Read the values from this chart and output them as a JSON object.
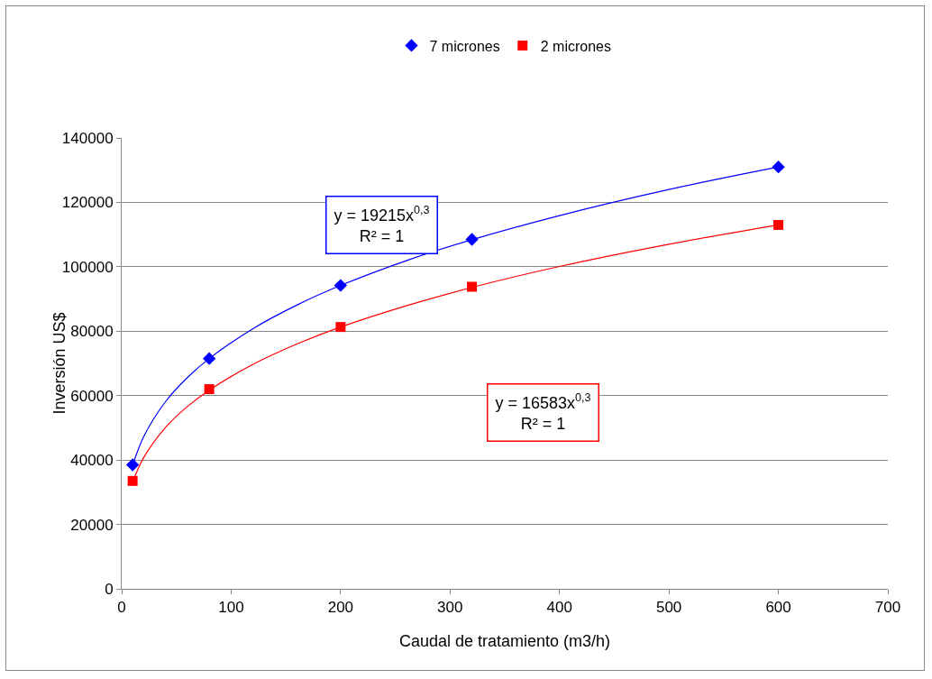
{
  "chart_data": {
    "type": "scatter",
    "xlabel": "Caudal de tratamiento (m3/h)",
    "ylabel": "Inversión US$",
    "xlim": [
      0,
      700
    ],
    "xticks": [
      0,
      100,
      200,
      300,
      400,
      500,
      600,
      700
    ],
    "ylim": [
      0,
      140000
    ],
    "yticks": [
      0,
      20000,
      40000,
      60000,
      80000,
      100000,
      120000,
      140000
    ],
    "grid": "y",
    "legend": "top",
    "series": [
      {
        "name": "7 micrones",
        "color": "#0000ff",
        "marker": "diamond",
        "x": [
          10,
          80,
          200,
          320,
          600
        ],
        "values": [
          38500,
          71500,
          94200,
          108500,
          131000
        ]
      },
      {
        "name": "2 micrones",
        "color": "#ff0000",
        "marker": "square",
        "x": [
          10,
          80,
          200,
          320,
          600
        ],
        "values": [
          33500,
          62000,
          81300,
          93800,
          113000
        ]
      },
      {
        "type": "line",
        "color": "#0000ff",
        "x": [
          10,
          20,
          40,
          60,
          80,
          120,
          160,
          200,
          260,
          320,
          400,
          500,
          600
        ],
        "values": [
          38300,
          47200,
          58100,
          65600,
          71500,
          80800,
          88100,
          94200,
          101900,
          108400,
          115900,
          124000,
          131000
        ]
      },
      {
        "type": "line",
        "color": "#ff0000",
        "x": [
          10,
          20,
          40,
          60,
          80,
          120,
          160,
          200,
          260,
          320,
          400,
          500,
          600
        ],
        "values": [
          33100,
          40700,
          50100,
          56600,
          61700,
          69700,
          76000,
          81300,
          87900,
          93600,
          100100,
          107000,
          113000
        ]
      }
    ],
    "annotations": [
      "y = 19215x$^{0,3}$\nR² = 1",
      "y = 16583x$^{0,3}$\nR² = 1"
    ]
  }
}
